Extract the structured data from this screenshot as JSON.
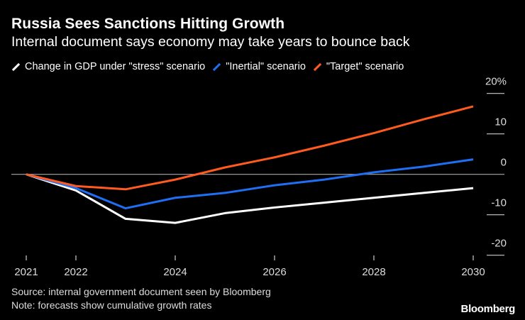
{
  "header": {
    "title": "Russia Sees Sanctions Hitting Growth",
    "subtitle": "Internal document says economy may take years to bounce back"
  },
  "footer": {
    "source": "Source: internal government document seen by Bloomberg",
    "note": "Note: forecasts show cumulative growth rates",
    "logo": "Bloomberg"
  },
  "chart_data": {
    "type": "line",
    "title": "Russia Sees Sanctions Hitting Growth",
    "subtitle": "Internal document says economy may take years to bounce back",
    "x": [
      2021,
      2022,
      2023,
      2024,
      2025,
      2026,
      2027,
      2028,
      2029,
      2030
    ],
    "x_tick_labels": [
      "2021",
      "2022",
      "2024",
      "2026",
      "2028",
      "2030"
    ],
    "y_tick_labels": [
      "20%",
      "10",
      "0",
      "-10",
      "-20"
    ],
    "ylim": [
      -20,
      20
    ],
    "xlim": [
      2021,
      2030
    ],
    "y_axis_side": "right",
    "zero_line": true,
    "legend_position": "top",
    "series": [
      {
        "name": "Change in GDP under \"stress\" scenario",
        "color": "#ffffff",
        "values": [
          0,
          -4.0,
          -11.0,
          -12.0,
          -9.6,
          -8.2,
          -7.0,
          -5.8,
          -4.6,
          -3.4
        ]
      },
      {
        "name": "\"Inertial\" scenario",
        "color": "#1f6ff5",
        "values": [
          0,
          -3.4,
          -8.4,
          -5.8,
          -4.6,
          -2.7,
          -1.3,
          0.5,
          1.9,
          3.7
        ]
      },
      {
        "name": "\"Target\" scenario",
        "color": "#ff5a1f",
        "values": [
          0,
          -2.9,
          -3.7,
          -1.3,
          1.7,
          4.2,
          7.1,
          10.2,
          13.6,
          16.8
        ]
      }
    ]
  }
}
